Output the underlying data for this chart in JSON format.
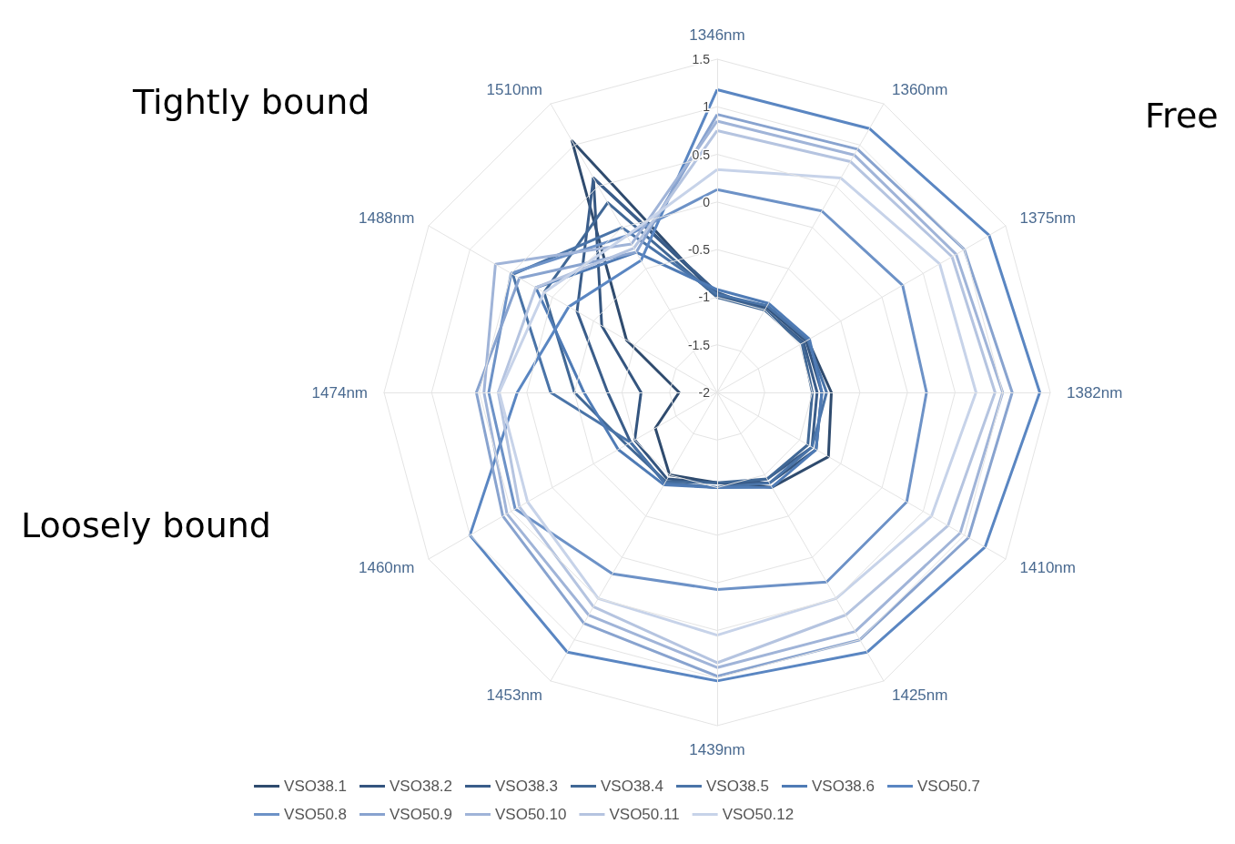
{
  "chart_data": {
    "type": "radar",
    "categories": [
      "1346nm",
      "1360nm",
      "1375nm",
      "1382nm",
      "1410nm",
      "1425nm",
      "1439nm",
      "1453nm",
      "1460nm",
      "1474nm",
      "1488nm",
      "1510nm"
    ],
    "ylim": [
      -2,
      1.5
    ],
    "yticks": [
      -2,
      -1.5,
      -1,
      -0.5,
      0,
      0.5,
      1,
      1.5
    ],
    "grid": true,
    "legend": "bottom",
    "marker": "none",
    "line_style": "solid",
    "annotations": [
      "Tightly bound",
      "Free",
      "Loosely bound"
    ],
    "series": [
      {
        "name": "VSO38.1",
        "color": "#2f4b6e",
        "values": [
          -1.0,
          -0.95,
          -0.9,
          -0.8,
          -0.65,
          -0.85,
          -1.05,
          -1.0,
          -1.25,
          -1.6,
          -0.9,
          1.05
        ]
      },
      {
        "name": "VSO38.2",
        "color": "#34557f",
        "values": [
          -0.97,
          -0.97,
          -0.92,
          -0.9,
          -0.8,
          -0.9,
          -1.05,
          -0.95,
          -1.0,
          -1.2,
          -0.6,
          0.6
        ]
      },
      {
        "name": "VSO38.3",
        "color": "#3a5d8a",
        "values": [
          -0.95,
          -1.0,
          -0.95,
          -0.95,
          -0.85,
          -0.95,
          -1.0,
          -0.9,
          -0.95,
          -0.85,
          -0.3,
          0.6
        ]
      },
      {
        "name": "VSO38.4",
        "color": "#416896",
        "values": [
          -1.0,
          -1.0,
          -0.97,
          -1.0,
          -0.9,
          -0.95,
          -1.05,
          -0.92,
          -0.9,
          -0.5,
          0.1,
          0.3
        ]
      },
      {
        "name": "VSO38.5",
        "color": "#4a74a8",
        "values": [
          -0.97,
          -0.95,
          -0.9,
          -0.85,
          -0.85,
          -0.9,
          -1.0,
          -0.9,
          -0.95,
          -0.25,
          0.48,
          0.0
        ]
      },
      {
        "name": "VSO38.6",
        "color": "#4f7bb5",
        "values": [
          -0.92,
          -0.92,
          -0.88,
          -0.9,
          -0.8,
          -0.85,
          -1.0,
          -0.88,
          -0.8,
          -0.6,
          0.2,
          -0.3
        ]
      },
      {
        "name": "VSO50.7",
        "color": "#5a86c2",
        "values": [
          1.18,
          1.2,
          1.3,
          1.39,
          1.25,
          1.15,
          1.03,
          1.15,
          1.0,
          0.1,
          -0.2,
          -0.4
        ]
      },
      {
        "name": "VSO50.8",
        "color": "#6d92c7",
        "values": [
          0.13,
          0.2,
          0.25,
          0.2,
          0.3,
          0.3,
          0.07,
          0.2,
          0.45,
          0.4,
          0.5,
          -0.1
        ]
      },
      {
        "name": "VSO50.9",
        "color": "#88a3cf",
        "values": [
          0.92,
          0.95,
          1.0,
          1.1,
          1.05,
          1.0,
          0.98,
          0.8,
          0.6,
          0.53,
          0.4,
          -0.3
        ]
      },
      {
        "name": "VSO50.10",
        "color": "#a0b4d8",
        "values": [
          0.85,
          0.88,
          0.9,
          1.0,
          0.95,
          0.9,
          0.89,
          0.7,
          0.55,
          0.45,
          0.69,
          -0.2
        ]
      },
      {
        "name": "VSO50.11",
        "color": "#b5c4e0",
        "values": [
          0.75,
          0.8,
          0.85,
          0.92,
          0.8,
          0.7,
          0.84,
          0.6,
          0.4,
          0.3,
          0.2,
          -0.25
        ]
      },
      {
        "name": "VSO50.12",
        "color": "#c7d3e9",
        "values": [
          0.34,
          0.6,
          0.7,
          0.72,
          0.6,
          0.5,
          0.55,
          0.5,
          0.3,
          0.29,
          0.1,
          -0.1
        ]
      }
    ]
  }
}
